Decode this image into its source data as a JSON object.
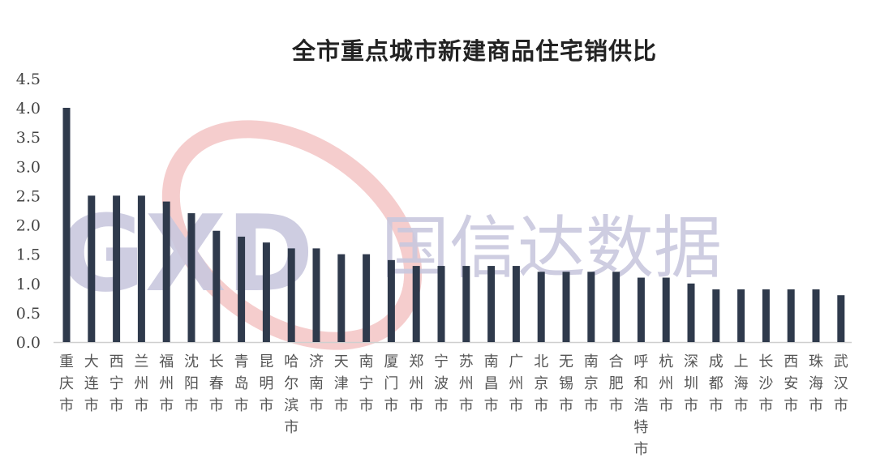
{
  "chart_data": {
    "type": "bar",
    "title": "全市重点城市新建商品住宅销供比",
    "xlabel": "",
    "ylabel": "",
    "ylim": [
      0,
      4.5
    ],
    "yticks": [
      "0.0",
      "0.5",
      "1.0",
      "1.5",
      "2.0",
      "2.5",
      "3.0",
      "3.5",
      "4.0",
      "4.5"
    ],
    "grid": false,
    "bar_color": "#2f3a4c",
    "categories": [
      "重庆市",
      "大连市",
      "西宁市",
      "兰州市",
      "福州市",
      "沈阳市",
      "长春市",
      "青岛市",
      "昆明市",
      "哈尔滨市",
      "济南市",
      "天津市",
      "南宁市",
      "厦门市",
      "郑州市",
      "宁波市",
      "苏州市",
      "南昌市",
      "广州市",
      "北京市",
      "无锡市",
      "南京市",
      "合肥市",
      "呼和浩特市",
      "杭州市",
      "深圳市",
      "成都市",
      "上海市",
      "长沙市",
      "西安市",
      "珠海市",
      "武汉市"
    ],
    "values": [
      4.0,
      2.5,
      2.5,
      2.5,
      2.4,
      2.2,
      1.9,
      1.8,
      1.7,
      1.6,
      1.6,
      1.5,
      1.5,
      1.4,
      1.3,
      1.3,
      1.3,
      1.3,
      1.3,
      1.2,
      1.2,
      1.2,
      1.2,
      1.1,
      1.1,
      1.0,
      0.9,
      0.9,
      0.9,
      0.9,
      0.9,
      0.8
    ]
  },
  "watermark": {
    "logo": "GXD",
    "text": "国信达数据",
    "color": "#c9c8de",
    "arc_color": "#f3c4c4"
  }
}
